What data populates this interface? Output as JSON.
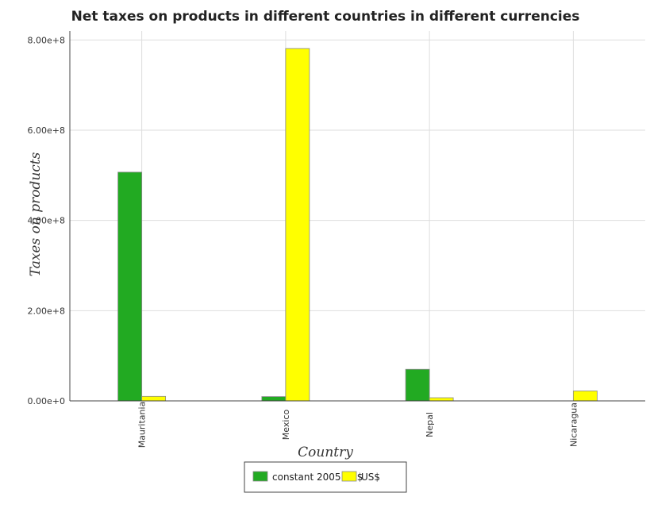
{
  "chart_data": {
    "type": "bar",
    "title": "Net taxes on products in different countries in different currencies",
    "xlabel": "Country",
    "ylabel": "Taxes on products",
    "categories": [
      "Mauritania",
      "Mexico",
      "Nepal",
      "Nicaragua"
    ],
    "series": [
      {
        "name": "constant 2005 US$",
        "color": "#22aa22",
        "values": [
          507000000,
          9500000,
          70000000,
          0
        ]
      },
      {
        "name": "US$",
        "color": "#ffff00",
        "values": [
          10000000,
          781000000,
          7000000,
          22000000
        ]
      }
    ],
    "ylim": [
      0,
      820000000
    ],
    "yticks": [
      0,
      200000000,
      400000000,
      600000000,
      800000000
    ],
    "ytick_labels": [
      "0.00e+0",
      "2.00e+8",
      "4.00e+8",
      "6.00e+8",
      "8.00e+8"
    ],
    "grid": true,
    "legend": "bottom-center"
  }
}
